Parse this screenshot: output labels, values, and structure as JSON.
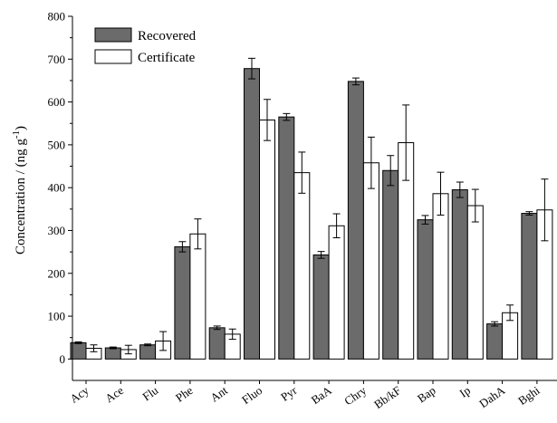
{
  "chart_data": {
    "type": "bar",
    "title": "",
    "xlabel": "",
    "ylabel": "Concentration / (ng g",
    "ylabel_sup": "-1",
    "ylabel_tail": ")",
    "ylim": [
      -50,
      800
    ],
    "yticks": [
      0,
      100,
      200,
      300,
      400,
      500,
      600,
      700,
      800
    ],
    "grid": false,
    "legend_position": "top-left",
    "categories": [
      "Acy",
      "Ace",
      "Flu",
      "Phe",
      "Ant",
      "Fluo",
      "Pyr",
      "BaA",
      "Chry",
      "Bb/kF",
      "Bap",
      "Ip",
      "DahA",
      "Bghi"
    ],
    "series": [
      {
        "name": "Recovered",
        "color": "#6b6b6b",
        "values": [
          38,
          26,
          33,
          262,
          73,
          678,
          565,
          243,
          648,
          440,
          325,
          395,
          82,
          340
        ],
        "errors": [
          2,
          2,
          2,
          12,
          4,
          24,
          8,
          8,
          8,
          35,
          10,
          18,
          5,
          4
        ]
      },
      {
        "name": "Certificate",
        "color": "#ffffff",
        "values": [
          25,
          22,
          42,
          292,
          58,
          558,
          435,
          311,
          458,
          505,
          386,
          358,
          108,
          348
        ],
        "errors": [
          8,
          10,
          22,
          35,
          12,
          48,
          48,
          28,
          60,
          88,
          50,
          38,
          18,
          72
        ]
      }
    ]
  }
}
